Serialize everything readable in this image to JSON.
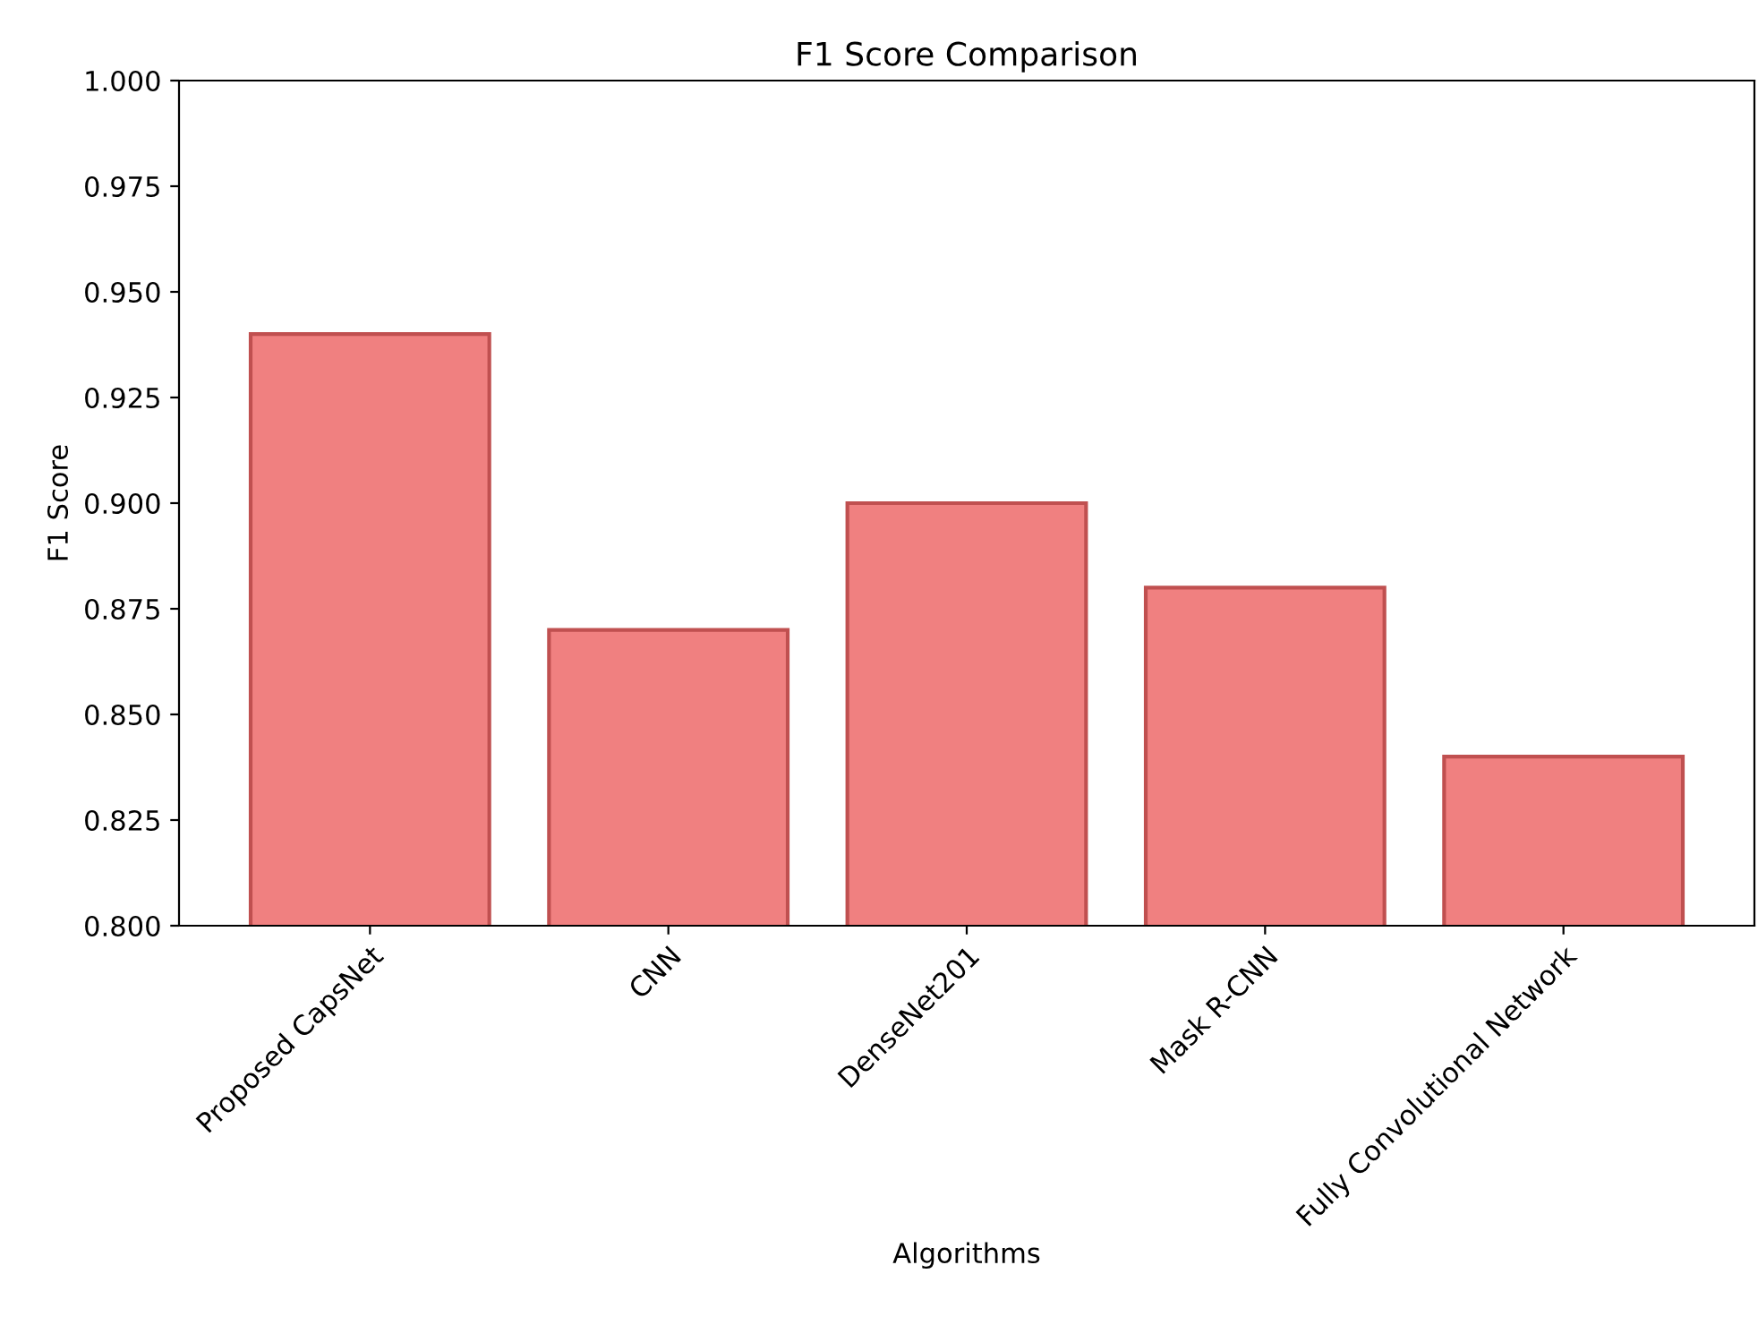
{
  "chart_data": {
    "type": "bar",
    "title": "F1 Score Comparison",
    "xlabel": "Algorithms",
    "ylabel": "F1 Score",
    "categories": [
      "Proposed CapsNet",
      "CNN",
      "DenseNet201",
      "Mask R-CNN",
      "Fully Convolutional Network"
    ],
    "values": [
      0.94,
      0.87,
      0.9,
      0.88,
      0.84
    ],
    "color": "#f08080",
    "ylim": [
      0.8,
      1.0
    ],
    "yticks": [
      {
        "value": 0.8,
        "label": "0.800"
      },
      {
        "value": 0.825,
        "label": "0.825"
      },
      {
        "value": 0.85,
        "label": "0.850"
      },
      {
        "value": 0.875,
        "label": "0.875"
      },
      {
        "value": 0.9,
        "label": "0.900"
      },
      {
        "value": 0.925,
        "label": "0.925"
      },
      {
        "value": 0.95,
        "label": "0.950"
      },
      {
        "value": 0.975,
        "label": "0.975"
      },
      {
        "value": 1.0,
        "label": "1.000"
      }
    ],
    "grid": false
  }
}
